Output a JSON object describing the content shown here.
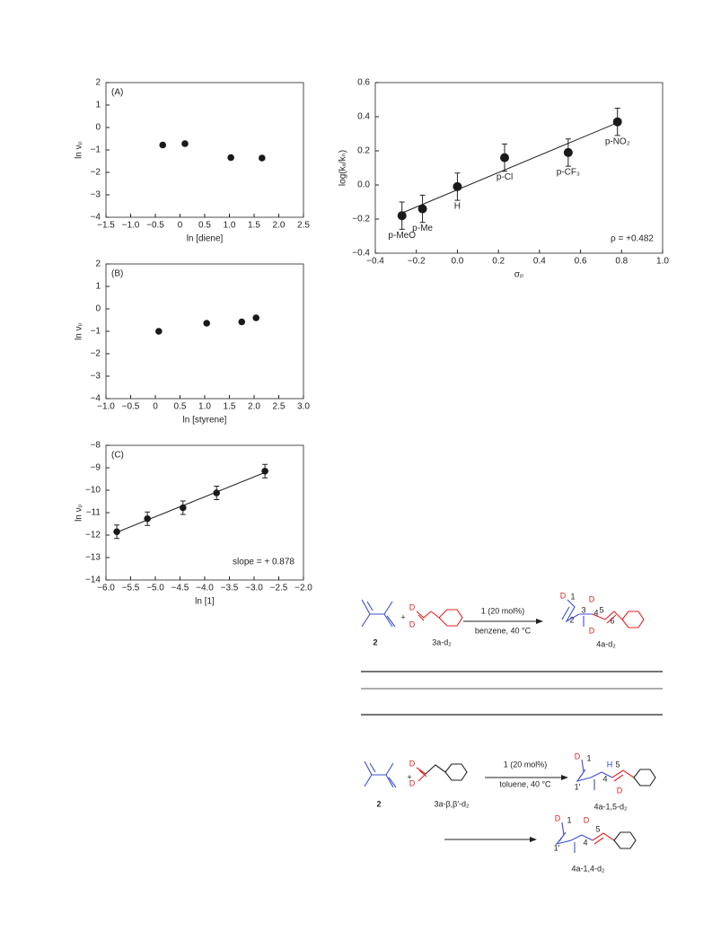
{
  "chart_data": [
    {
      "type": "scatter",
      "panel": "(A)",
      "xlabel": "ln [diene]",
      "ylabel": "ln νₚ",
      "x": [
        -0.35,
        0.1,
        1.03,
        1.66
      ],
      "values": [
        -0.78,
        -0.72,
        -1.34,
        -1.36
      ],
      "color": "#1a1a1a",
      "xlim": [
        -1.5,
        2.5
      ],
      "ylim": [
        -4,
        2
      ],
      "xticks": [
        {
          "value": -1.5,
          "label": "−1.5"
        },
        {
          "value": -1,
          "label": "−1.0"
        },
        {
          "value": -0.5,
          "label": "−0.5"
        },
        0,
        0.5,
        {
          "value": 1,
          "label": "1.0"
        },
        1.5,
        {
          "value": 2,
          "label": "2.0"
        },
        2.5
      ],
      "yticks": [
        2,
        1,
        0,
        {
          "value": -1,
          "label": "−1"
        },
        {
          "value": -2,
          "label": "−2"
        },
        {
          "value": -3,
          "label": "−3"
        },
        {
          "value": -4,
          "label": "−4"
        }
      ]
    },
    {
      "type": "scatter",
      "panel": "(B)",
      "xlabel": "ln [styrene]",
      "ylabel": "ln νₚ",
      "x": [
        0.07,
        1.04,
        1.75,
        2.04
      ],
      "values": [
        -1.0,
        -0.64,
        -0.58,
        -0.4
      ],
      "color": "#1a1a1a",
      "xlim": [
        -1,
        3
      ],
      "ylim": [
        -4,
        2
      ],
      "xticks": [
        {
          "value": -1,
          "label": "−1.0"
        },
        {
          "value": -0.5,
          "label": "−0.5"
        },
        0,
        0.5,
        {
          "value": 1,
          "label": "1.0"
        },
        1.5,
        {
          "value": 2,
          "label": "2.0"
        },
        2.5,
        {
          "value": 3,
          "label": "3.0"
        }
      ],
      "yticks": [
        2,
        1,
        0,
        {
          "value": -1,
          "label": "−1"
        },
        {
          "value": -2,
          "label": "−2"
        },
        {
          "value": -3,
          "label": "−3"
        },
        {
          "value": -4,
          "label": "−4"
        }
      ]
    },
    {
      "type": "scatter",
      "panel": "(C)",
      "xlabel": "ln [1]",
      "ylabel": "ln νₚ",
      "annotation": "slope = + 0.878",
      "x": [
        -5.78,
        -5.16,
        -4.44,
        -3.76,
        -2.78
      ],
      "values": [
        -11.85,
        -11.27,
        -10.78,
        -10.12,
        -9.15
      ],
      "errors": [
        0.3,
        0.3,
        0.3,
        0.3,
        0.3
      ],
      "color": "#1a1a1a",
      "fit": true,
      "xlim": [
        -6,
        -2
      ],
      "ylim": [
        -14,
        -8
      ],
      "xticks": [
        {
          "value": -6,
          "label": "−6.0"
        },
        {
          "value": -5.5,
          "label": "−5.5"
        },
        {
          "value": -5,
          "label": "−5.0"
        },
        {
          "value": -4.5,
          "label": "−4.5"
        },
        {
          "value": -4,
          "label": "−4.0"
        },
        {
          "value": -3.5,
          "label": "−3.5"
        },
        {
          "value": -3,
          "label": "−3.0"
        },
        {
          "value": -2.5,
          "label": "−2.5"
        },
        {
          "value": -2,
          "label": "−2.0"
        }
      ],
      "yticks": [
        {
          "value": -8,
          "label": "−8"
        },
        {
          "value": -9,
          "label": "−9"
        },
        {
          "value": -10,
          "label": "−10"
        },
        {
          "value": -11,
          "label": "−11"
        },
        {
          "value": -12,
          "label": "−12"
        },
        {
          "value": -13,
          "label": "−13"
        },
        {
          "value": -14,
          "label": "−14"
        }
      ]
    },
    {
      "type": "scatter",
      "xlabel": "σₚ",
      "ylabel": "log(kₓ/kₕ)",
      "annotation": "ρ = +0.482",
      "categories": [
        "p-MeO",
        "p-Me",
        "H",
        "p-Cl",
        "p-CF₃",
        "p-NO₂"
      ],
      "x": [
        -0.27,
        -0.17,
        0,
        0.23,
        0.54,
        0.78
      ],
      "values": [
        -0.18,
        -0.14,
        -0.01,
        0.16,
        0.19,
        0.37
      ],
      "errors": [
        0.08,
        0.08,
        0.08,
        0.08,
        0.08,
        0.08
      ],
      "color": "#1a1a1a",
      "fit": true,
      "big": true,
      "xlim": [
        -0.4,
        1.0
      ],
      "ylim": [
        -0.4,
        0.6
      ],
      "xticks": [
        {
          "value": -0.4,
          "label": "−0.4"
        },
        {
          "value": -0.2,
          "label": "−0.2"
        },
        {
          "value": 0,
          "label": "0.0"
        },
        0.2,
        0.4,
        0.6,
        0.8,
        {
          "value": 1,
          "label": "1.0"
        }
      ],
      "yticks": [
        0.6,
        0.4,
        0.2,
        {
          "value": 0,
          "label": "0.0"
        },
        {
          "value": -0.2,
          "label": "−0.2"
        },
        {
          "value": -0.4,
          "label": "−0.4"
        }
      ]
    }
  ],
  "schemes": [
    {
      "reactant": "2",
      "plus": "+",
      "partner": "3a-d₂",
      "catalyst": "1 (20 mol%)",
      "conditions": "benzene, 40 °C",
      "product": "4a-d₂",
      "atoms": [
        "D",
        "D",
        "D",
        "1",
        "2",
        "3",
        "D",
        "4",
        "5",
        "D",
        "6"
      ]
    },
    {
      "reactant": "2",
      "plus": "+",
      "partner": "3a-β,β′-d₂",
      "catalyst": "1 (20 mol%)",
      "conditions": "toluene, 40 °C",
      "atoms": [
        "D",
        "D"
      ],
      "products": [
        {
          "name": "4a-1,5-d₂",
          "atoms": [
            "D",
            "1",
            "1′",
            "4",
            "5",
            "H",
            "D"
          ]
        },
        {
          "name": "4a-1,4-d₂",
          "atoms": [
            "D",
            "1",
            "1′",
            "4",
            "5",
            "D"
          ]
        }
      ]
    }
  ]
}
